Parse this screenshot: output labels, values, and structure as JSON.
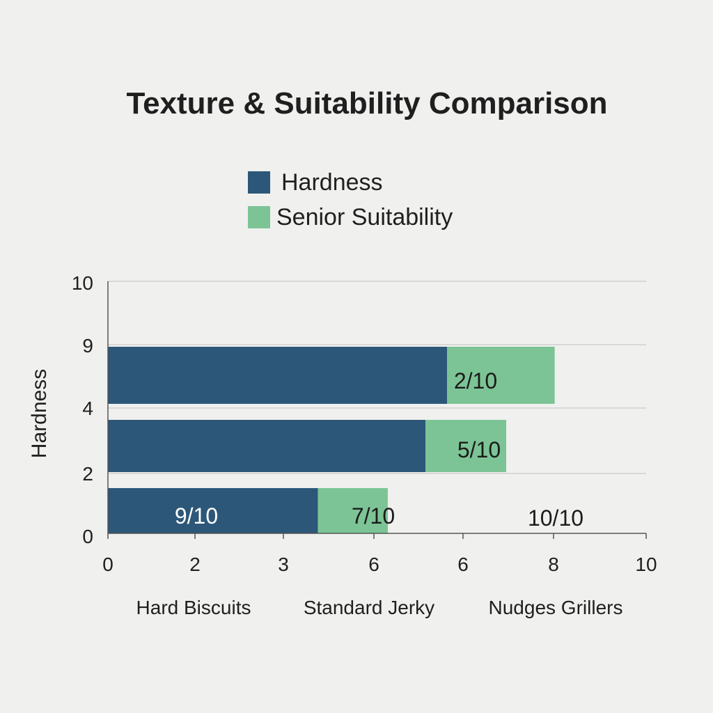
{
  "chart_data": {
    "type": "bar",
    "orientation": "horizontal",
    "stacked": true,
    "title": "Texture & Suitability Comparison",
    "ylabel": "Hardness",
    "xlabel": "",
    "legend": {
      "placement": "top-center",
      "entries": [
        "Hardness",
        "Senior Suitability"
      ]
    },
    "colors": {
      "hardness": "#2c5778",
      "senior_suitability": "#7cc495",
      "grid": "#cfcfcf",
      "axis": "#555555",
      "background": "#f0f0ef"
    },
    "x_ticks": [
      "0",
      "2",
      "3",
      "6",
      "6",
      "8",
      "10"
    ],
    "y_ticks": [
      "10",
      "9",
      "4",
      "2",
      "0"
    ],
    "categories": [
      "Hard Biscuits",
      "Standard Jerky",
      "Nudges Grillers"
    ],
    "series": [
      {
        "name": "Hardness",
        "bar_values": [
          6.3,
          5.9,
          3.9
        ]
      },
      {
        "name": "Senior Suitability",
        "bar_values": [
          2.0,
          1.5,
          1.3
        ]
      }
    ],
    "data_labels": [
      "2/10",
      "5/10",
      "9/10",
      "7/10",
      "10/10"
    ]
  }
}
